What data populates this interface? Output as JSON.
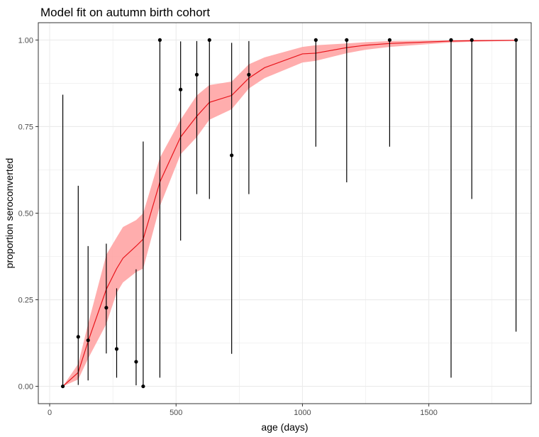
{
  "chart_data": {
    "type": "scatter",
    "title": "Model fit on autumn birth cohort",
    "xlabel": "age (days)",
    "ylabel": "proportion seroconverted",
    "xlim": [
      -45,
      1905
    ],
    "ylim": [
      -0.05,
      1.05
    ],
    "x_ticks": [
      0,
      500,
      1000,
      1500
    ],
    "x_tick_labels": [
      "0",
      "500",
      "1000",
      "1500"
    ],
    "y_ticks": [
      0,
      0.25,
      0.5,
      0.75,
      1
    ],
    "y_tick_labels": [
      "0.00",
      "0.25",
      "0.50",
      "0.75",
      "1.00"
    ],
    "grid": true,
    "colors": {
      "ribbon": "#ff9f9f",
      "fit_line": "#e8141b",
      "points": "#000000",
      "grid": "#ebebeb",
      "panel_border": "#333333"
    },
    "observed": [
      {
        "x": 52,
        "y": 0.0,
        "lo": 0.0,
        "hi": 0.842
      },
      {
        "x": 113,
        "y": 0.143,
        "lo": 0.004,
        "hi": 0.579
      },
      {
        "x": 152,
        "y": 0.133,
        "lo": 0.017,
        "hi": 0.405
      },
      {
        "x": 224,
        "y": 0.227,
        "lo": 0.095,
        "hi": 0.412
      },
      {
        "x": 265,
        "y": 0.108,
        "lo": 0.025,
        "hi": 0.283
      },
      {
        "x": 342,
        "y": 0.071,
        "lo": 0.003,
        "hi": 0.338
      },
      {
        "x": 370,
        "y": 0.0,
        "lo": 0.0,
        "hi": 0.707
      },
      {
        "x": 436,
        "y": 1.0,
        "lo": 0.025,
        "hi": 1.0
      },
      {
        "x": 518,
        "y": 0.857,
        "lo": 0.421,
        "hi": 0.996
      },
      {
        "x": 582,
        "y": 0.9,
        "lo": 0.555,
        "hi": 0.997
      },
      {
        "x": 632,
        "y": 1.0,
        "lo": 0.541,
        "hi": 1.0
      },
      {
        "x": 720,
        "y": 0.667,
        "lo": 0.094,
        "hi": 0.992
      },
      {
        "x": 788,
        "y": 0.9,
        "lo": 0.555,
        "hi": 0.997
      },
      {
        "x": 1053,
        "y": 1.0,
        "lo": 0.692,
        "hi": 1.0
      },
      {
        "x": 1175,
        "y": 1.0,
        "lo": 0.589,
        "hi": 1.0
      },
      {
        "x": 1345,
        "y": 1.0,
        "lo": 0.692,
        "hi": 1.0
      },
      {
        "x": 1588,
        "y": 1.0,
        "lo": 0.025,
        "hi": 1.0
      },
      {
        "x": 1670,
        "y": 1.0,
        "lo": 0.541,
        "hi": 1.0
      },
      {
        "x": 1845,
        "y": 1.0,
        "lo": 0.158,
        "hi": 1.0
      }
    ],
    "fit": [
      {
        "x": 52,
        "y": 0.0,
        "lo": 0.0,
        "hi": 0.0
      },
      {
        "x": 113,
        "y": 0.04,
        "lo": 0.02,
        "hi": 0.065
      },
      {
        "x": 152,
        "y": 0.13,
        "lo": 0.08,
        "hi": 0.18
      },
      {
        "x": 224,
        "y": 0.28,
        "lo": 0.18,
        "hi": 0.38
      },
      {
        "x": 265,
        "y": 0.34,
        "lo": 0.27,
        "hi": 0.43
      },
      {
        "x": 290,
        "y": 0.37,
        "lo": 0.3,
        "hi": 0.46
      },
      {
        "x": 342,
        "y": 0.405,
        "lo": 0.33,
        "hi": 0.48
      },
      {
        "x": 370,
        "y": 0.425,
        "lo": 0.34,
        "hi": 0.5
      },
      {
        "x": 436,
        "y": 0.59,
        "lo": 0.52,
        "hi": 0.66
      },
      {
        "x": 518,
        "y": 0.72,
        "lo": 0.67,
        "hi": 0.77
      },
      {
        "x": 582,
        "y": 0.78,
        "lo": 0.72,
        "hi": 0.84
      },
      {
        "x": 632,
        "y": 0.82,
        "lo": 0.77,
        "hi": 0.87
      },
      {
        "x": 720,
        "y": 0.84,
        "lo": 0.8,
        "hi": 0.88
      },
      {
        "x": 788,
        "y": 0.89,
        "lo": 0.86,
        "hi": 0.93
      },
      {
        "x": 850,
        "y": 0.92,
        "lo": 0.89,
        "hi": 0.95
      },
      {
        "x": 1000,
        "y": 0.96,
        "lo": 0.935,
        "hi": 0.98
      },
      {
        "x": 1053,
        "y": 0.962,
        "lo": 0.94,
        "hi": 0.985
      },
      {
        "x": 1175,
        "y": 0.978,
        "lo": 0.962,
        "hi": 0.99
      },
      {
        "x": 1250,
        "y": 0.985,
        "lo": 0.972,
        "hi": 0.994
      },
      {
        "x": 1345,
        "y": 0.99,
        "lo": 0.98,
        "hi": 0.997
      },
      {
        "x": 1588,
        "y": 0.997,
        "lo": 0.993,
        "hi": 0.999
      },
      {
        "x": 1670,
        "y": 0.998,
        "lo": 0.995,
        "hi": 1.0
      },
      {
        "x": 1845,
        "y": 0.999,
        "lo": 0.998,
        "hi": 1.0
      }
    ]
  }
}
